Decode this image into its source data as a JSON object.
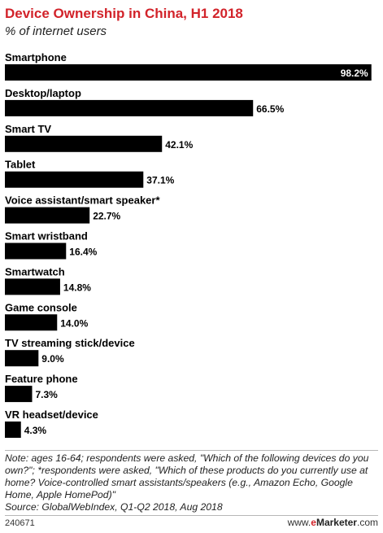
{
  "header": {
    "title": "Device Ownership in China, H1 2018",
    "subtitle": "% of internet users"
  },
  "chart_data": {
    "type": "bar",
    "orientation": "horizontal",
    "categories": [
      "Smartphone",
      "Desktop/laptop",
      "Smart TV",
      "Tablet",
      "Voice assistant/smart speaker*",
      "Smart wristband",
      "Smartwatch",
      "Game console",
      "TV streaming stick/device",
      "Feature phone",
      "VR headset/device"
    ],
    "values": [
      98.2,
      66.5,
      42.1,
      37.1,
      22.7,
      16.4,
      14.8,
      14.0,
      9.0,
      7.3,
      4.3
    ],
    "value_labels": [
      "98.2%",
      "66.5%",
      "42.1%",
      "37.1%",
      "22.7%",
      "16.4%",
      "14.8%",
      "14.0%",
      "9.0%",
      "7.3%",
      "4.3%"
    ],
    "xlim": [
      0,
      100
    ],
    "bar_color": "#000000",
    "grid": false,
    "legend": "none"
  },
  "footer": {
    "note": "Note: ages 16-64; respondents were asked, \"Which of the following devices do you own?\"; *respondents were asked, \"Which of these products do you currently use at home? Voice-controlled smart assistants/speakers (e.g., Amazon Echo, Google Home, Apple HomePod)\"",
    "source": "Source: GlobalWebIndex, Q1-Q2 2018, Aug 2018",
    "code": "240671",
    "brand_prefix": "www.",
    "brand_e": "e",
    "brand_name": "Marketer",
    "brand_suffix": ".com"
  },
  "colors": {
    "title": "#d2232a",
    "bar": "#000000",
    "brand_accent": "#d2232a"
  }
}
